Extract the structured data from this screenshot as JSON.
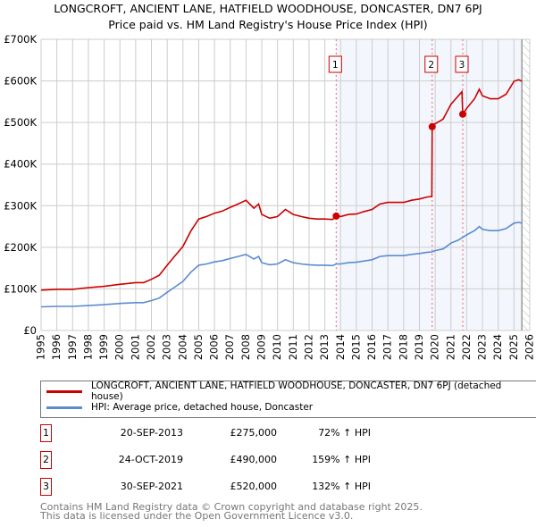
{
  "chart_data": {
    "type": "line",
    "title": "LONGCROFT, ANCIENT LANE, HATFIELD WOODHOUSE, DONCASTER, DN7 6PJ",
    "subtitle": "Price paid vs. HM Land Registry's House Price Index (HPI)",
    "xlim": [
      1995,
      2026
    ],
    "ylim": [
      0,
      700000
    ],
    "x_ticks": [
      "1995",
      "1996",
      "1997",
      "1998",
      "1999",
      "2000",
      "2001",
      "2002",
      "2003",
      "2004",
      "2005",
      "2006",
      "2007",
      "2008",
      "2009",
      "2010",
      "2011",
      "2012",
      "2013",
      "2014",
      "2015",
      "2016",
      "2017",
      "2018",
      "2019",
      "2020",
      "2021",
      "2022",
      "2023",
      "2024",
      "2025",
      "2026"
    ],
    "y_ticks": [
      {
        "v": 0,
        "label": "£0"
      },
      {
        "v": 100000,
        "label": "£100K"
      },
      {
        "v": 200000,
        "label": "£200K"
      },
      {
        "v": 300000,
        "label": "£300K"
      },
      {
        "v": 400000,
        "label": "£400K"
      },
      {
        "v": 500000,
        "label": "£500K"
      },
      {
        "v": 600000,
        "label": "£600K"
      },
      {
        "v": 700000,
        "label": "£700K"
      }
    ],
    "grid": true,
    "shaded_from": 2013.72,
    "forecast_from": 2025.5,
    "series": [
      {
        "name": "LONGCROFT, ANCIENT LANE, HATFIELD WOODHOUSE, DONCASTER, DN7 6PJ (detached house)",
        "color": "#cc0000",
        "x": [
          1995,
          1996,
          1997,
          1998,
          1999,
          2000,
          2001,
          2001.5,
          2002,
          2002.5,
          2003,
          2003.5,
          2004,
          2004.5,
          2005,
          2005.5,
          2006,
          2006.5,
          2007,
          2007.5,
          2008,
          2008.5,
          2008.8,
          2009,
          2009.5,
          2010,
          2010.5,
          2011,
          2011.5,
          2012,
          2012.5,
          2013,
          2013.5,
          2013.72,
          2014,
          2014.5,
          2015,
          2015.5,
          2016,
          2016.5,
          2017,
          2017.5,
          2018,
          2018.5,
          2019,
          2019.5,
          2019.79,
          2019.81,
          2020,
          2020.5,
          2021,
          2021.7,
          2021.75,
          2022,
          2022.5,
          2022.8,
          2023,
          2023.5,
          2024,
          2024.5,
          2025,
          2025.3,
          2025.5
        ],
        "y": [
          97,
          99,
          99,
          103,
          106,
          111,
          115,
          115,
          123,
          133,
          157,
          180,
          202,
          239,
          268,
          274,
          282,
          287,
          296,
          304,
          313,
          294,
          304,
          279,
          270,
          274,
          291,
          279,
          274,
          270,
          268,
          268,
          267,
          275,
          274,
          279,
          280,
          286,
          291,
          304,
          308,
          308,
          308,
          313,
          316,
          321,
          322,
          490,
          497,
          508,
          544,
          574,
          520,
          534,
          557,
          580,
          564,
          557,
          557,
          568,
          599,
          603,
          599
        ],
        "unit": 1000
      },
      {
        "name": "HPI: Average price, detached house, Doncaster",
        "color": "#5b8bd0",
        "x": [
          1995,
          1996,
          1997,
          1998,
          1999,
          2000,
          2001,
          2001.5,
          2002,
          2002.5,
          2003,
          2003.5,
          2004,
          2004.5,
          2005,
          2005.5,
          2006,
          2006.5,
          2007,
          2007.5,
          2008,
          2008.5,
          2008.8,
          2009,
          2009.5,
          2010,
          2010.5,
          2011,
          2011.5,
          2012,
          2012.5,
          2013,
          2013.5,
          2013.72,
          2014,
          2014.5,
          2015,
          2015.5,
          2016,
          2016.5,
          2017,
          2017.5,
          2018,
          2018.5,
          2019,
          2019.5,
          2019.8,
          2020,
          2020.5,
          2021,
          2021.5,
          2021.75,
          2022,
          2022.5,
          2022.8,
          2023,
          2023.5,
          2024,
          2024.5,
          2025,
          2025.3,
          2025.5
        ],
        "y": [
          57,
          58,
          58,
          60,
          62,
          65,
          67,
          67,
          72,
          78,
          92,
          105,
          118,
          140,
          157,
          160,
          165,
          168,
          173,
          178,
          183,
          172,
          178,
          163,
          158,
          160,
          170,
          163,
          160,
          158,
          157,
          157,
          156,
          160,
          160,
          163,
          164,
          167,
          170,
          178,
          180,
          180,
          180,
          183,
          185,
          188,
          189,
          192,
          196,
          210,
          218,
          224,
          230,
          240,
          250,
          243,
          240,
          240,
          245,
          258,
          260,
          258
        ],
        "unit": 1000
      }
    ],
    "sales": [
      {
        "id": "1",
        "x": 2013.72,
        "price": 275000,
        "date": "20-SEP-2013",
        "price_label": "£275,000",
        "hpi": "72% ↑ HPI"
      },
      {
        "id": "2",
        "x": 2019.81,
        "price": 490000,
        "date": "24-OCT-2019",
        "price_label": "£490,000",
        "hpi": "159% ↑ HPI"
      },
      {
        "id": "3",
        "x": 2021.75,
        "price": 520000,
        "date": "30-SEP-2021",
        "price_label": "£520,000",
        "hpi": "132% ↑ HPI"
      }
    ]
  },
  "footer": [
    "Contains HM Land Registry data © Crown copyright and database right 2025.",
    "This data is licensed under the Open Government Licence v3.0."
  ]
}
